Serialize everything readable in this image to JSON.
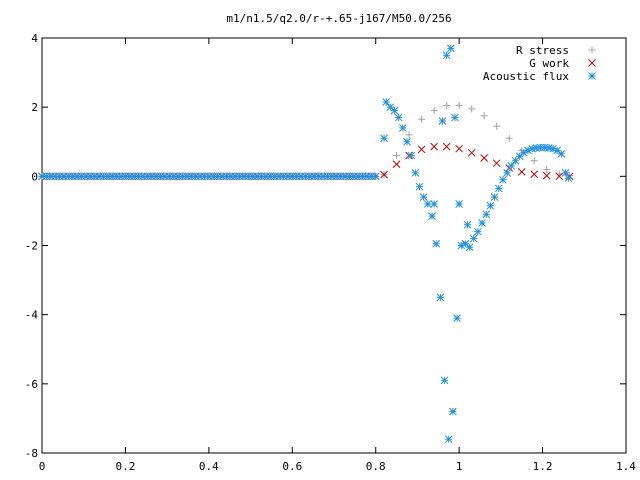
{
  "chart_data": {
    "type": "scatter",
    "title": "m1/n1.5/q2.0/r-+.65-j167/M50.0/256",
    "xlabel": "",
    "ylabel": "",
    "xlim": [
      0,
      1.4
    ],
    "ylim": [
      -8,
      4
    ],
    "xticks": [
      0,
      0.2,
      0.4,
      0.6,
      0.8,
      1,
      1.2,
      1.4
    ],
    "xtick_labels": [
      "0",
      "0.2",
      "0.4",
      "0.6",
      "0.8",
      "1",
      "1.2",
      "1.4"
    ],
    "yticks": [
      -8,
      -6,
      -4,
      -2,
      0,
      2,
      4
    ],
    "ytick_labels": [
      "-8",
      "-6",
      "-4",
      "-2",
      "0",
      "2",
      "4"
    ],
    "grid": false,
    "legend": "top-right",
    "series": [
      {
        "name": "R stress",
        "marker": "plus",
        "color": "#a0a0a0",
        "points": [
          [
            0.0,
            0.0
          ],
          [
            0.8,
            0.0
          ],
          [
            0.82,
            0.05
          ],
          [
            0.85,
            0.6
          ],
          [
            0.88,
            1.2
          ],
          [
            0.91,
            1.65
          ],
          [
            0.94,
            1.9
          ],
          [
            0.97,
            2.05
          ],
          [
            1.0,
            2.05
          ],
          [
            1.03,
            1.95
          ],
          [
            1.06,
            1.75
          ],
          [
            1.09,
            1.45
          ],
          [
            1.12,
            1.1
          ],
          [
            1.15,
            0.75
          ],
          [
            1.18,
            0.45
          ],
          [
            1.21,
            0.2
          ],
          [
            1.24,
            0.07
          ],
          [
            1.265,
            0.02
          ]
        ]
      },
      {
        "name": "G work",
        "marker": "x",
        "color": "#cc0000",
        "points": [
          [
            0.0,
            0.0
          ],
          [
            0.8,
            0.0
          ],
          [
            0.82,
            0.05
          ],
          [
            0.85,
            0.35
          ],
          [
            0.88,
            0.6
          ],
          [
            0.91,
            0.78
          ],
          [
            0.94,
            0.86
          ],
          [
            0.97,
            0.86
          ],
          [
            1.0,
            0.8
          ],
          [
            1.03,
            0.68
          ],
          [
            1.06,
            0.53
          ],
          [
            1.09,
            0.38
          ],
          [
            1.12,
            0.24
          ],
          [
            1.15,
            0.13
          ],
          [
            1.18,
            0.06
          ],
          [
            1.21,
            0.02
          ],
          [
            1.24,
            0.0
          ],
          [
            1.265,
            0.0
          ]
        ]
      },
      {
        "name": "Acoustic flux",
        "marker": "star",
        "color": "#1e8fe0",
        "points": [
          [
            0.0,
            0.0
          ],
          [
            0.8,
            0.0
          ],
          [
            0.82,
            1.1
          ],
          [
            0.825,
            2.15
          ],
          [
            0.835,
            2.0
          ],
          [
            0.845,
            1.9
          ],
          [
            0.855,
            1.7
          ],
          [
            0.865,
            1.4
          ],
          [
            0.875,
            1.0
          ],
          [
            0.885,
            0.6
          ],
          [
            0.895,
            0.1
          ],
          [
            0.905,
            -0.3
          ],
          [
            0.915,
            -0.6
          ],
          [
            0.925,
            -0.8
          ],
          [
            0.935,
            -1.15
          ],
          [
            0.94,
            -0.8
          ],
          [
            0.945,
            -1.95
          ],
          [
            0.955,
            -3.5
          ],
          [
            0.96,
            1.6
          ],
          [
            0.965,
            -5.9
          ],
          [
            0.97,
            3.5
          ],
          [
            0.975,
            -7.6
          ],
          [
            0.98,
            3.7
          ],
          [
            0.985,
            -6.8
          ],
          [
            0.99,
            1.7
          ],
          [
            0.995,
            -4.1
          ],
          [
            1.0,
            -0.8
          ],
          [
            1.005,
            -2.0
          ],
          [
            1.015,
            -1.95
          ],
          [
            1.02,
            -1.4
          ],
          [
            1.025,
            -2.05
          ],
          [
            1.035,
            -1.8
          ],
          [
            1.045,
            -1.6
          ],
          [
            1.055,
            -1.35
          ],
          [
            1.065,
            -1.1
          ],
          [
            1.075,
            -0.85
          ],
          [
            1.085,
            -0.6
          ],
          [
            1.095,
            -0.35
          ],
          [
            1.105,
            -0.1
          ],
          [
            1.115,
            0.1
          ],
          [
            1.125,
            0.3
          ],
          [
            1.135,
            0.45
          ],
          [
            1.145,
            0.58
          ],
          [
            1.155,
            0.68
          ],
          [
            1.165,
            0.75
          ],
          [
            1.175,
            0.8
          ],
          [
            1.185,
            0.82
          ],
          [
            1.195,
            0.83
          ],
          [
            1.205,
            0.83
          ],
          [
            1.215,
            0.82
          ],
          [
            1.225,
            0.8
          ],
          [
            1.235,
            0.75
          ],
          [
            1.245,
            0.65
          ],
          [
            1.255,
            0.1
          ],
          [
            1.262,
            -0.05
          ]
        ]
      }
    ]
  }
}
